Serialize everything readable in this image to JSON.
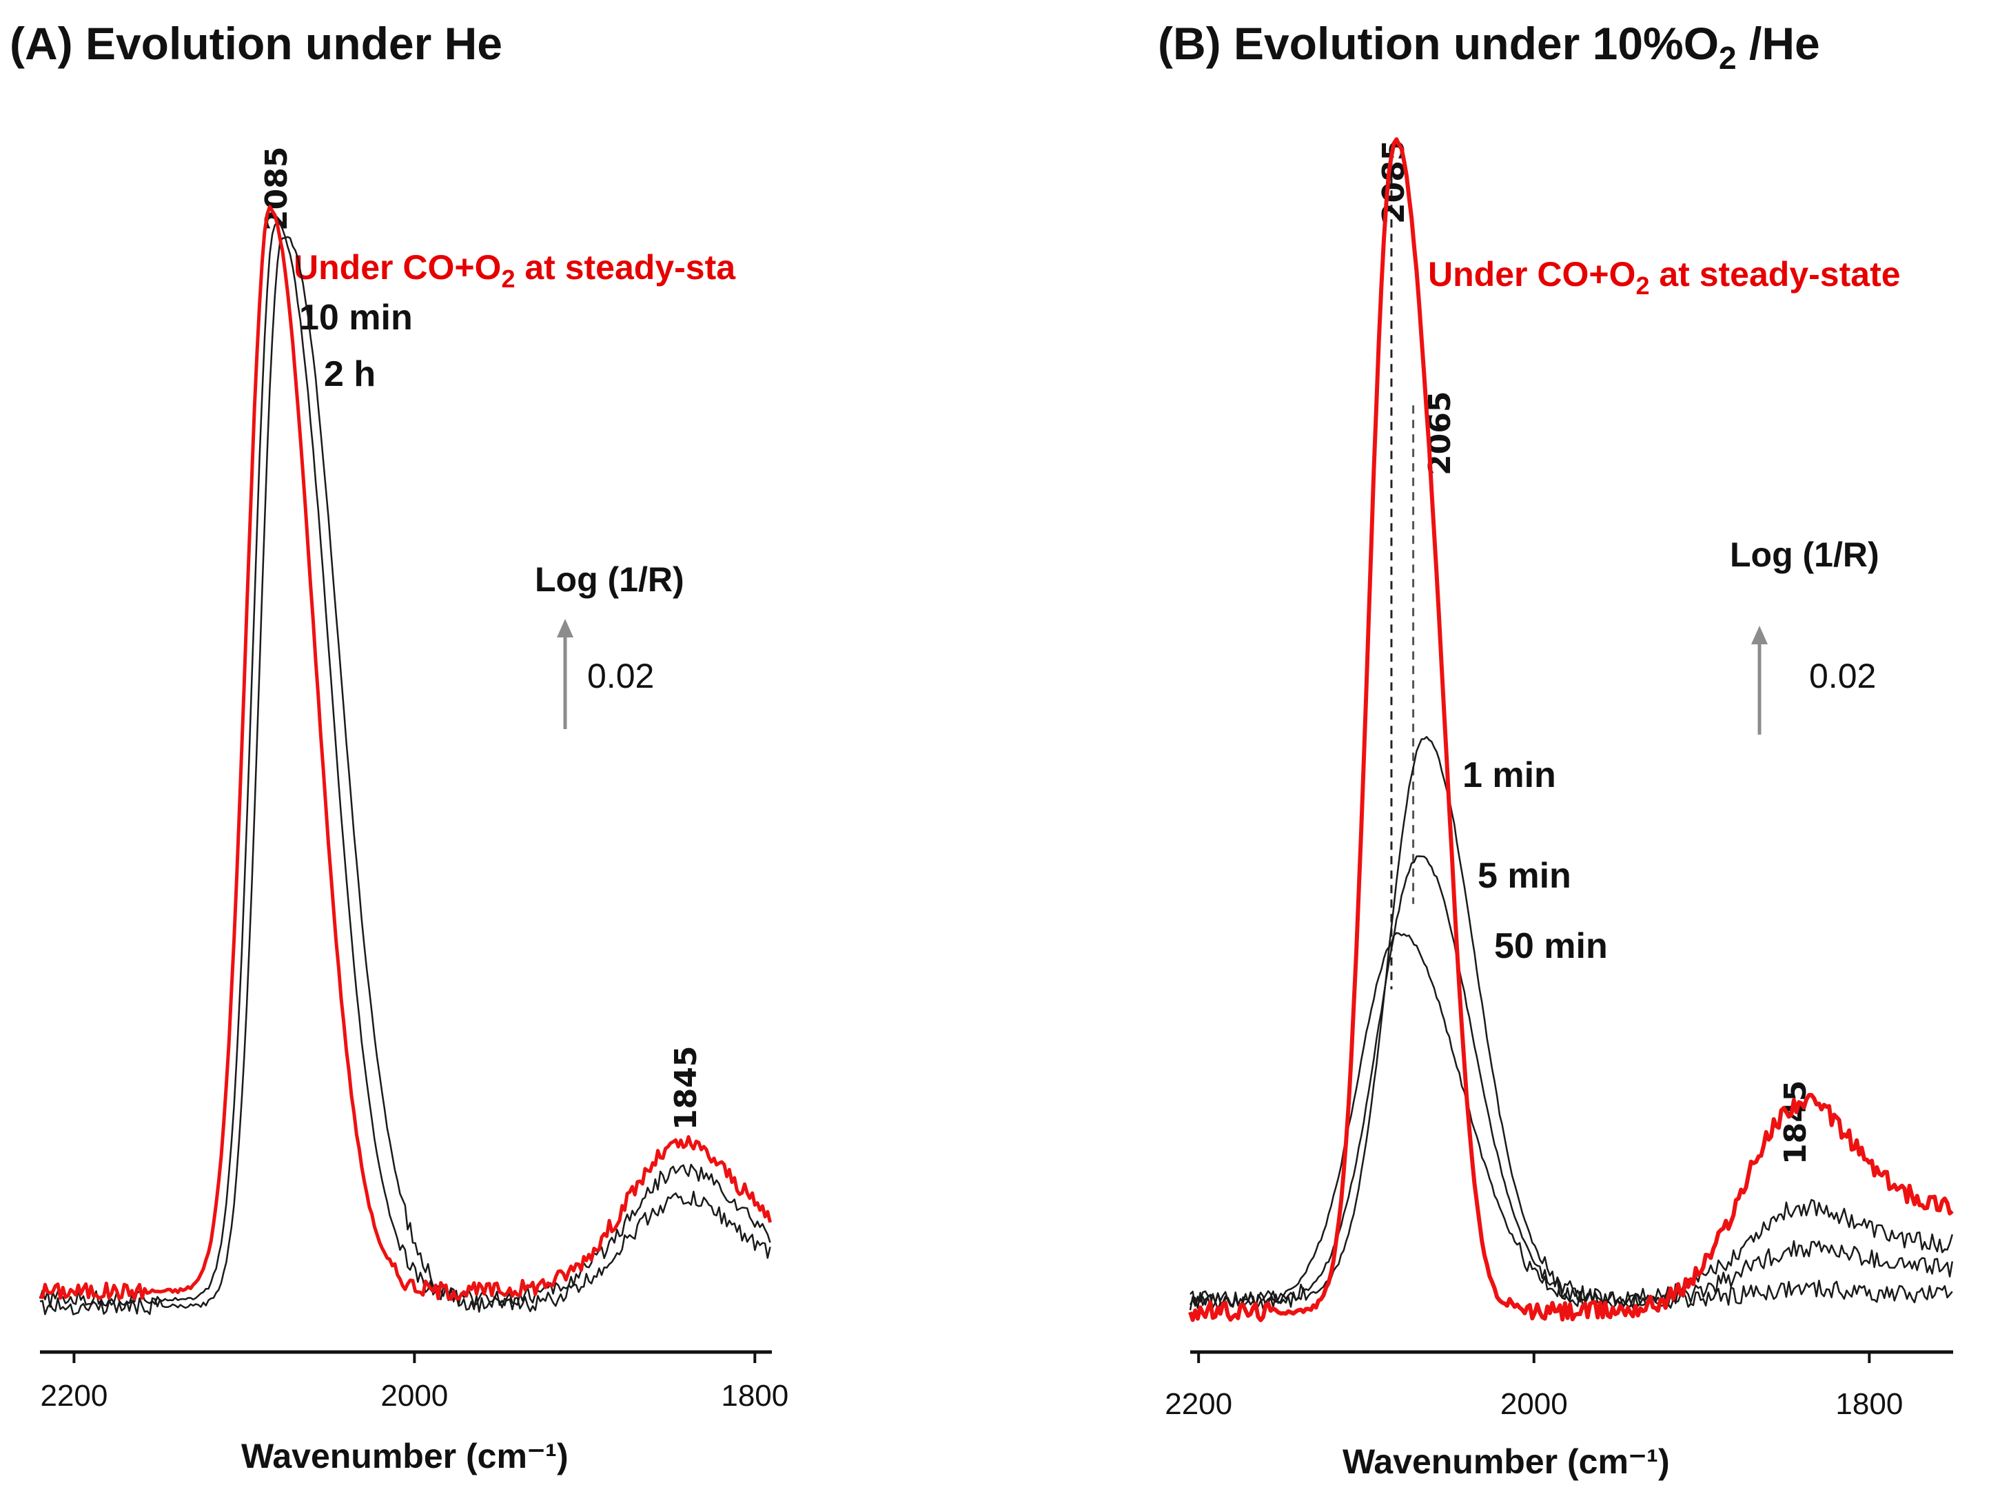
{
  "colors": {
    "steady": "#ee1111",
    "transient": "#1a1a1a",
    "arrow": "#8c8c8c"
  },
  "chart_data": [
    {
      "type": "line",
      "title": "(A) Evolution under He",
      "xlabel": "Wavenumber (cm⁻¹)",
      "xlim": [
        2220,
        1790
      ],
      "xticks": [
        2200,
        2000,
        1800
      ],
      "ylabel": "Log (1/R)",
      "scale_bar": "0.02",
      "ylim": [
        0,
        0.155
      ],
      "series": [
        {
          "name": "Under CO+O₂ at steady-sta",
          "label_main": "Under CO+O",
          "label_sub": "2",
          "label_rest": " at steady-sta",
          "color": "#ee1111",
          "width": 5,
          "center": 2085,
          "height": 0.1423,
          "wl": 14,
          "wr": 26,
          "shoulder": 0,
          "base": 0.006,
          "bump": 0.014,
          "tail": 0.0065
        },
        {
          "name": "10 min",
          "color": "#1a1a1a",
          "width": 2.5,
          "center": 2082,
          "height": 0.1398,
          "wl": 13,
          "wr": 30,
          "shoulder": 0.006,
          "base": 0.005,
          "bump": 0.0125,
          "tail": 0.0055
        },
        {
          "name": "2 h",
          "color": "#1a1a1a",
          "width": 2.5,
          "center": 2078,
          "height": 0.1378,
          "wl": 13,
          "wr": 33,
          "shoulder": 0.007,
          "base": 0.004,
          "bump": 0.0105,
          "tail": 0.0045
        }
      ],
      "peak_labels": [
        "2085",
        "1845"
      ]
    },
    {
      "type": "line",
      "title_main": "(B) Evolution under 10%O",
      "title_sub": "2",
      "title_rest": " /He",
      "xlabel": "Wavenumber (cm⁻¹)",
      "xlim": [
        2205,
        1750
      ],
      "xticks": [
        2200,
        2000,
        1800
      ],
      "ylabel": "Log (1/R)",
      "scale_bar": "0.02",
      "ylim": [
        0,
        0.14
      ],
      "series": [
        {
          "name": "Under CO+O₂ at steady-state",
          "label_main": "Under CO+O",
          "label_sub": "2",
          "label_rest": " at steady-state",
          "color": "#ee1111",
          "width": 6,
          "center": 2085,
          "height": 0.1303,
          "wl": 14,
          "wr": 18,
          "shoulder": 0.045,
          "base": 0.003,
          "bump": 0.0145,
          "tail": 0.0125
        },
        {
          "name": "1 min",
          "color": "#1a1a1a",
          "width": 2.5,
          "center": 2065,
          "height": 0.0665,
          "wl": 22,
          "wr": 30,
          "shoulder": 0,
          "base": 0.0045,
          "bump": 0.0055,
          "tail": 0.0065
        },
        {
          "name": "5 min",
          "color": "#1a1a1a",
          "width": 2.5,
          "center": 2068,
          "height": 0.0528,
          "wl": 25,
          "wr": 31,
          "shoulder": 0,
          "base": 0.0042,
          "bump": 0.003,
          "tail": 0.004
        },
        {
          "name": "50 min",
          "color": "#1a1a1a",
          "width": 2.5,
          "center": 2080,
          "height": 0.0437,
          "wl": 25,
          "wr": 36,
          "shoulder": 0,
          "base": 0.0042,
          "bump": 0.0008,
          "tail": 0.0008
        }
      ],
      "peak_labels": [
        "2085",
        "2065",
        "1845"
      ]
    }
  ]
}
